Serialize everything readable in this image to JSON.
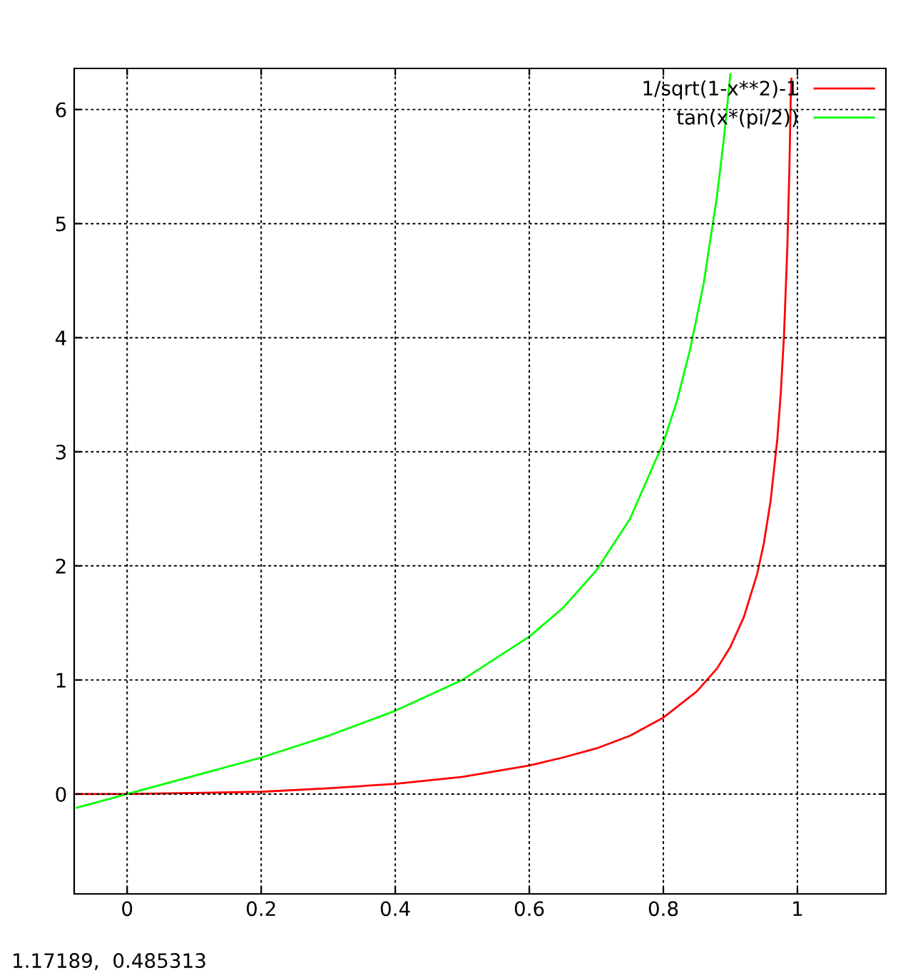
{
  "chart_data": {
    "type": "line",
    "xlim": [
      -0.079,
      1.132
    ],
    "ylim": [
      -0.875,
      6.36
    ],
    "xticks": [
      0,
      0.2,
      0.4,
      0.6,
      0.8,
      1
    ],
    "yticks": [
      0,
      1,
      2,
      3,
      4,
      5,
      6
    ],
    "grid": true,
    "legend": "top right",
    "marker": "none",
    "line_style": "solid",
    "series": [
      {
        "name": "1/sqrt(1-x**2)-1",
        "color": "#ff0000",
        "x": [
          -0.075,
          0,
          0.1,
          0.2,
          0.3,
          0.4,
          0.5,
          0.6,
          0.65,
          0.7,
          0.75,
          0.8,
          0.85,
          0.88,
          0.9,
          0.92,
          0.94,
          0.95,
          0.96,
          0.97,
          0.975,
          0.98,
          0.985,
          0.988,
          0.99,
          0.991
        ],
        "values": [
          0,
          0,
          0.01,
          0.02,
          0.05,
          0.09,
          0.15,
          0.25,
          0.32,
          0.4,
          0.51,
          0.67,
          0.9,
          1.1,
          1.29,
          1.55,
          1.93,
          2.2,
          2.57,
          3.11,
          3.5,
          4.02,
          4.8,
          5.47,
          6.09,
          6.27
        ]
      },
      {
        "name": "tan(x*(pi/2))",
        "color": "#00ff00",
        "x": [
          -0.075,
          0,
          0.1,
          0.2,
          0.3,
          0.4,
          0.5,
          0.6,
          0.65,
          0.7,
          0.75,
          0.8,
          0.82,
          0.84,
          0.86,
          0.88,
          0.89,
          0.9
        ],
        "values": [
          -0.12,
          0,
          0.16,
          0.32,
          0.51,
          0.73,
          1,
          1.38,
          1.63,
          1.96,
          2.41,
          3.08,
          3.44,
          3.9,
          4.47,
          5.24,
          5.73,
          6.31
        ]
      }
    ],
    "annotations": [
      "1.17189,  0.485313"
    ]
  }
}
